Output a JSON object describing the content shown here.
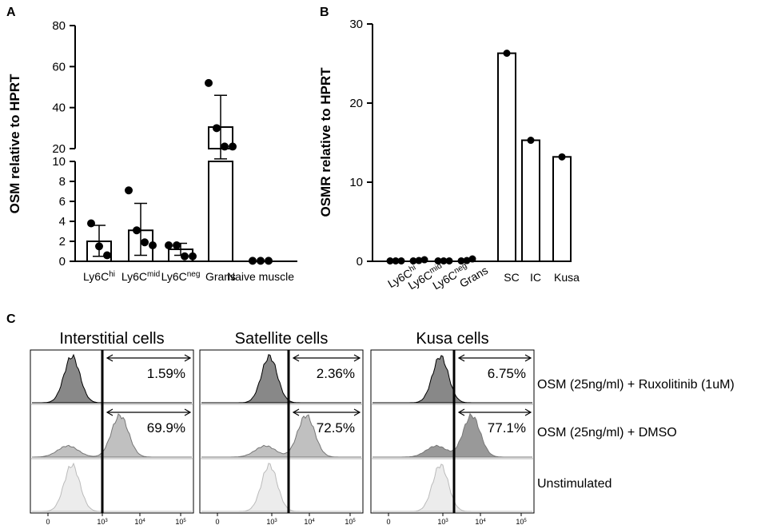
{
  "panel_labels": {
    "a": "A",
    "b": "B",
    "c": "C"
  },
  "colors": {
    "dark_histogram": "#888888",
    "mid_histogram": "#c0c0c0",
    "light_histogram": "#ececec",
    "bar_fill": "#ffffff"
  },
  "chart_data": [
    {
      "id": "A",
      "type": "bar",
      "ylabel": "OSM relative to HPRT",
      "axis_break": {
        "lower": [
          0,
          10
        ],
        "upper": [
          20,
          80
        ]
      },
      "yticks_lower": [
        "0",
        "2",
        "4",
        "6",
        "8",
        "10"
      ],
      "yticks_upper": [
        "20",
        "40",
        "60",
        "80"
      ],
      "categories": [
        {
          "name": "Ly6C",
          "sup": "hi",
          "mean": 2.0,
          "sd_upper": 3.6,
          "sd_lower": 0.5,
          "points": [
            3.8,
            1.5,
            0.6
          ]
        },
        {
          "name": "Ly6C",
          "sup": "mid",
          "mean": 3.1,
          "sd_upper": 5.8,
          "sd_lower": 0.6,
          "points": [
            7.1,
            3.1,
            1.9,
            1.6
          ]
        },
        {
          "name": "Ly6C",
          "sup": "neg",
          "mean": 1.2,
          "sd_upper": 1.8,
          "sd_lower": 0.6,
          "points": [
            1.6,
            1.6,
            0.5,
            0.5
          ]
        },
        {
          "name": "Grans",
          "sup": "",
          "mean": 30.5,
          "sd_upper": 46,
          "sd_lower": 15,
          "points": [
            52,
            30,
            21,
            21
          ]
        },
        {
          "name": "Naive muscle",
          "sup": "",
          "mean": 0.05,
          "sd_upper": 0.1,
          "sd_lower": 0.0,
          "points": [
            0.05,
            0.05,
            0.05
          ]
        }
      ]
    },
    {
      "id": "B",
      "type": "bar",
      "ylabel": "OSMR relative to HPRT",
      "ylim": [
        0,
        30
      ],
      "yticks": [
        "0",
        "10",
        "20",
        "30"
      ],
      "categories": [
        {
          "name": "Ly6C",
          "sup": "hi",
          "value": 0.05,
          "points": [
            0.05,
            0.05,
            0.05
          ]
        },
        {
          "name": "Ly6C",
          "sup": "mid",
          "value": 0.1,
          "points": [
            0.05,
            0.1,
            0.2
          ]
        },
        {
          "name": "Ly6C",
          "sup": "neg",
          "value": 0.05,
          "points": [
            0.05,
            0.05,
            0.05
          ]
        },
        {
          "name": "Grans",
          "sup": "",
          "value": 0.1,
          "points": [
            0.05,
            0.1,
            0.3
          ]
        },
        {
          "name": "SC",
          "sup": "",
          "value": 26.3,
          "points": [
            26.3
          ]
        },
        {
          "name": "IC",
          "sup": "",
          "value": 15.3,
          "points": [
            15.3
          ]
        },
        {
          "name": "Kusa",
          "sup": "",
          "value": 13.2,
          "points": [
            13.2
          ]
        }
      ]
    },
    {
      "id": "C",
      "type": "histogram",
      "x_scale": "log",
      "xticks": [
        "0",
        "10^3",
        "10^4",
        "10^5"
      ],
      "panels": [
        {
          "title": "Interstitial cells",
          "percentages": [
            "1.59%",
            "69.9%"
          ]
        },
        {
          "title": "Satellite cells",
          "percentages": [
            "2.36%",
            "72.5%"
          ]
        },
        {
          "title": "Kusa cells",
          "percentages": [
            "6.75%",
            "77.1%"
          ]
        }
      ],
      "conditions": [
        "OSM (25ng/ml) + Ruxolitinib (1uM)",
        "OSM (25ng/ml) + DMSO",
        "Unstimulated"
      ]
    }
  ]
}
